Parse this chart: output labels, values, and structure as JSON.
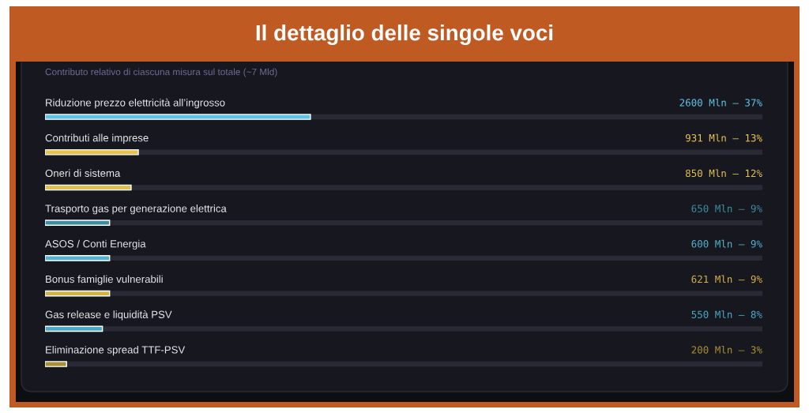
{
  "chart_data": {
    "type": "bar",
    "orientation": "horizontal",
    "title": "Il dettaglio delle singole voci",
    "subtitle": "Contributo relativo di ciascuna misura sul totale (~7 Mld)",
    "categories": [
      "Riduzione prezzo elettricità all’ingrosso",
      "Contributi alle imprese",
      "Oneri di sistema",
      "Trasporto gas per generazione elettrica",
      "ASOS / Conti Energia",
      "Bonus famiglie vulnerabili",
      "Gas release e liquidità PSV",
      "Eliminazione spread TTF-PSV"
    ],
    "values": [
      37,
      13,
      12,
      9,
      9,
      9,
      8,
      3
    ],
    "value_labels": [
      "2600 Mln — 37%",
      "931 Mln — 13%",
      "850 Mln — 12%",
      "650 Mln — 9%",
      "600 Mln — 9%",
      "621 Mln — 9%",
      "550 Mln — 8%",
      "200 Mln — 3%"
    ],
    "colors": [
      "#5ec4e6",
      "#e6c34c",
      "#e0c052",
      "#3d8e9f",
      "#52b3d0",
      "#d6b344",
      "#4aa7c6",
      "#a88f34"
    ],
    "xlim": [
      0,
      100
    ],
    "grid": "y",
    "tick_labels": "y"
  }
}
